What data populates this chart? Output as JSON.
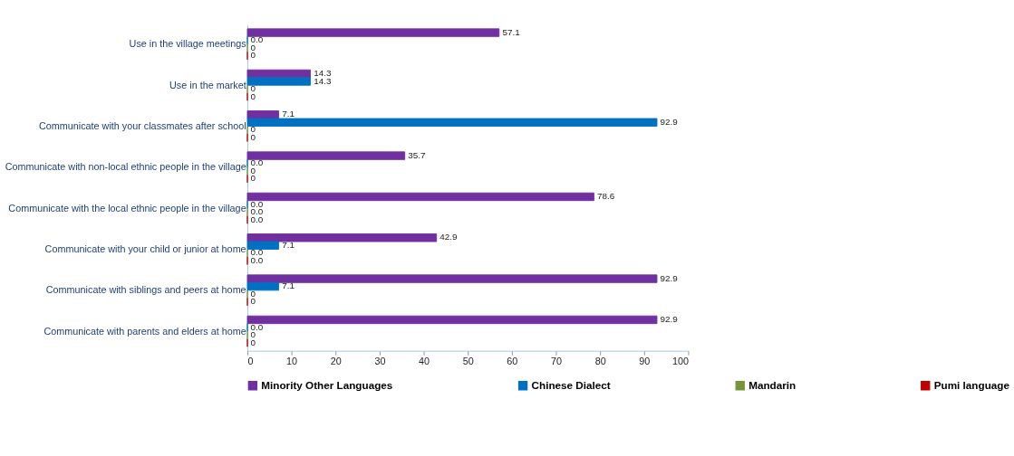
{
  "chart_data": {
    "type": "bar",
    "orientation": "horizontal",
    "categories": [
      "Use in the village meetings",
      "Use in the market",
      "Communicate with your classmates after school",
      "Communicate with non-local ethnic people in the village",
      "Communicate with the local ethnic people in the village",
      "Communicate with your child or junior at home",
      "Communicate with siblings and peers at home",
      "Communicate with parents and elders at home"
    ],
    "series": [
      {
        "name": "Minority Other Languages",
        "color": "#7030a0",
        "values": [
          57.1,
          14.3,
          7.1,
          35.7,
          78.6,
          42.9,
          92.9,
          92.9
        ],
        "value_labels": [
          "57.1",
          "14.3",
          "7.1",
          "35.7",
          "78.6",
          "42.9",
          "92.9",
          "92.9"
        ]
      },
      {
        "name": "Chinese Dialect",
        "color": "#0070c0",
        "values": [
          0,
          14.3,
          92.9,
          0,
          0,
          7.1,
          7.1,
          0
        ],
        "value_labels": [
          "0.0",
          "14.3",
          "92.9",
          "0.0",
          "0.0",
          "7.1",
          "7.1",
          "0.0"
        ]
      },
      {
        "name": "Mandarin",
        "color": "#77933c",
        "values": [
          0,
          0,
          0,
          0,
          0,
          0,
          0,
          0
        ],
        "value_labels": [
          "0",
          "0",
          "0",
          "0",
          "0.0",
          "0.0",
          "0",
          "0"
        ]
      },
      {
        "name": "Pumi language",
        "color": "#c00000",
        "values": [
          0,
          0,
          0,
          0,
          0,
          0,
          0,
          0
        ],
        "value_labels": [
          "0",
          "0",
          "0",
          "0",
          "0.0",
          "0.0",
          "0",
          "0"
        ]
      }
    ],
    "xlim": [
      0,
      100
    ],
    "xticks": [
      0,
      10,
      20,
      30,
      40,
      50,
      60,
      70,
      80,
      90,
      100
    ],
    "grid": false,
    "legend": "bottom"
  }
}
